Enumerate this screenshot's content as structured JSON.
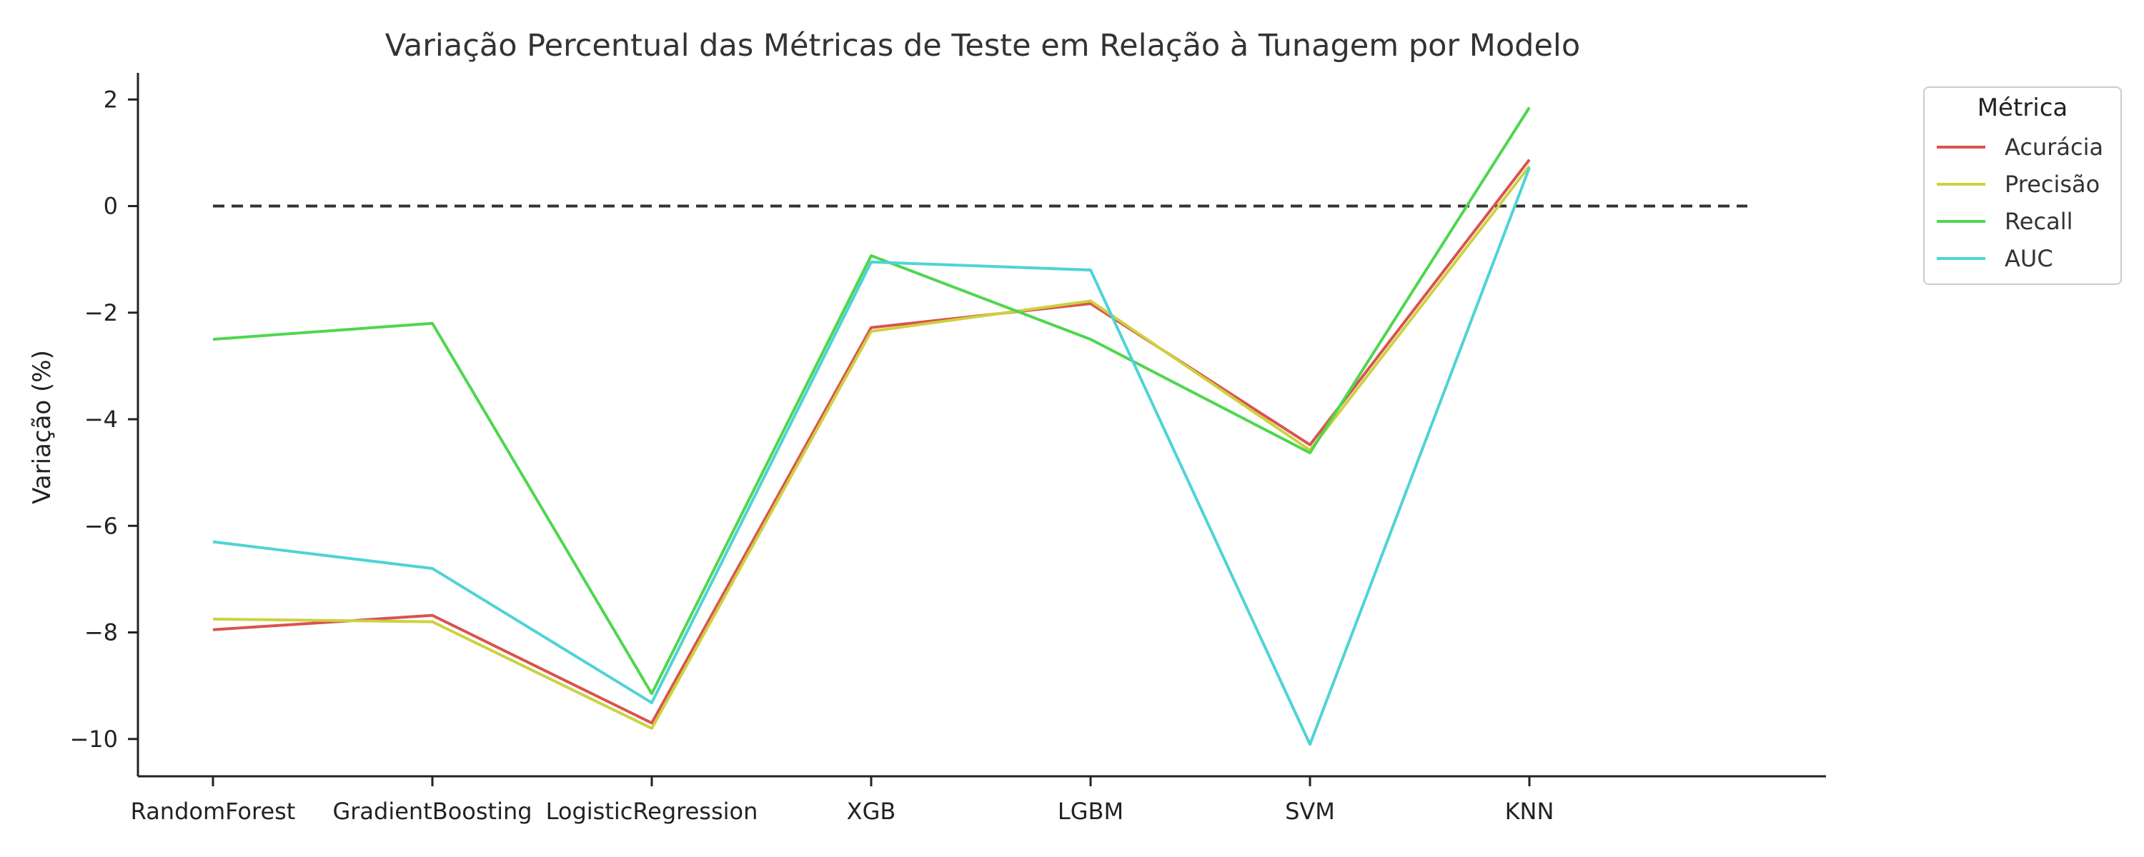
{
  "chart_data": {
    "type": "line",
    "title": "Variação Percentual das Métricas de Teste em Relação à Tunagem por Modelo",
    "xlabel": "",
    "ylabel": "Variação (%)",
    "categories": [
      "RandomForest",
      "GradientBoosting",
      "LogisticRegression",
      "XGB",
      "LGBM",
      "SVM",
      "KNN"
    ],
    "ylim": [
      -10.7,
      2.5
    ],
    "yticks": [
      2,
      0,
      -2,
      -4,
      -6,
      -8,
      -10
    ],
    "ytick_labels": [
      "2",
      "0",
      "−2",
      "−4",
      "−6",
      "−8",
      "−10"
    ],
    "reference_line": {
      "y": 0,
      "style": "dashed",
      "color": "#333333"
    },
    "legend": {
      "title": "Métrica",
      "position": "outside-top-right"
    },
    "grid": false,
    "series": [
      {
        "name": "Acurácia",
        "color": "#d9534f",
        "values": [
          -7.95,
          -7.68,
          -9.7,
          -2.28,
          -1.83,
          -4.48,
          0.87
        ]
      },
      {
        "name": "Precisão",
        "color": "#cdd13f",
        "values": [
          -7.75,
          -7.8,
          -9.8,
          -2.35,
          -1.78,
          -4.58,
          0.75
        ]
      },
      {
        "name": "Recall",
        "color": "#4fd64f",
        "values": [
          -2.5,
          -2.2,
          -9.15,
          -0.93,
          -2.5,
          -4.63,
          1.85
        ]
      },
      {
        "name": "AUC",
        "color": "#4fd3d6",
        "values": [
          -6.3,
          -6.8,
          -9.32,
          -1.05,
          -1.2,
          -10.1,
          0.72
        ]
      }
    ]
  }
}
